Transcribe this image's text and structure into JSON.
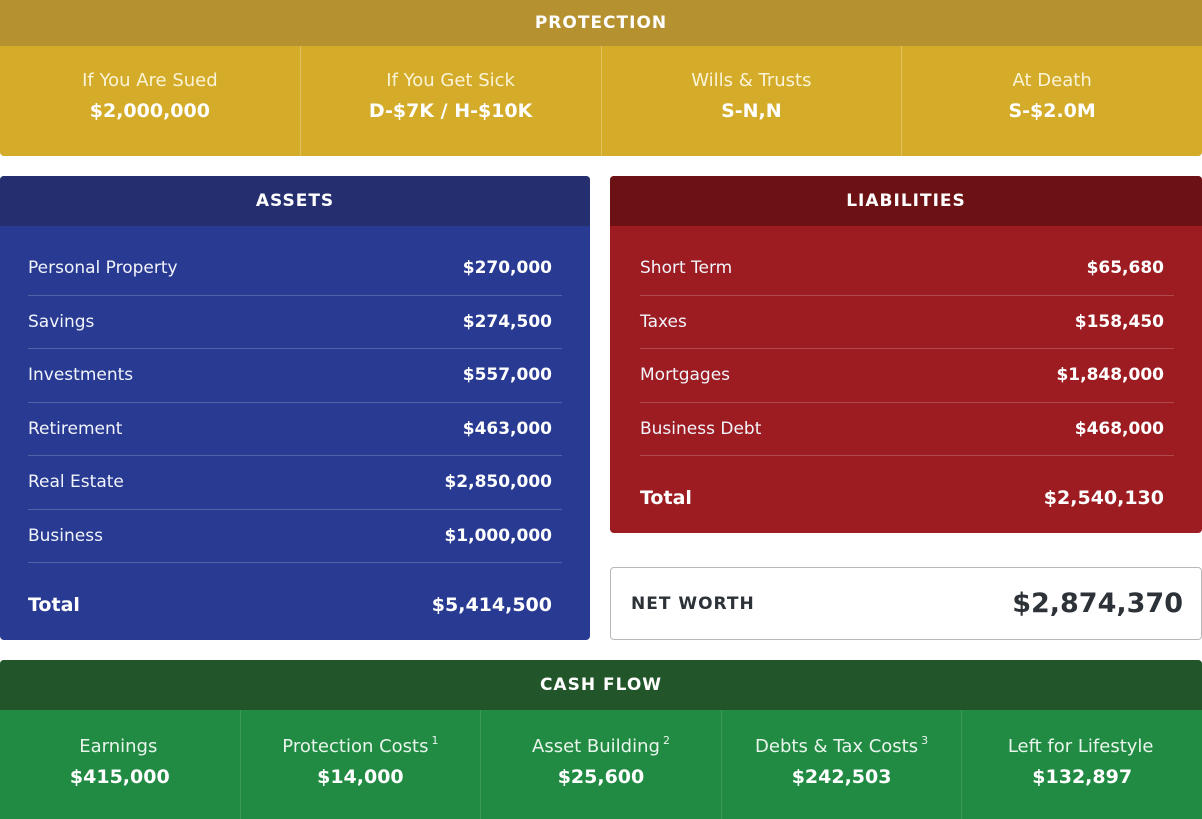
{
  "protection": {
    "title": "PROTECTION",
    "color_header": "#b5912f",
    "color_body": "#d4ac2a",
    "items": [
      {
        "label": "If You Are Sued",
        "value": "$2,000,000"
      },
      {
        "label": "If You Get Sick",
        "value": "D-$7K / H-$10K"
      },
      {
        "label": "Wills & Trusts",
        "value": "S-N,N"
      },
      {
        "label": "At Death",
        "value": "S-$2.0M"
      }
    ]
  },
  "assets": {
    "title": "ASSETS",
    "color_header": "#252f70",
    "color_body": "#283a92",
    "rows": [
      {
        "label": "Personal Property",
        "value": "$270,000"
      },
      {
        "label": "Savings",
        "value": "$274,500"
      },
      {
        "label": "Investments",
        "value": "$557,000"
      },
      {
        "label": "Retirement",
        "value": "$463,000"
      },
      {
        "label": "Real Estate",
        "value": "$2,850,000"
      },
      {
        "label": "Business",
        "value": "$1,000,000"
      }
    ],
    "total": {
      "label": "Total",
      "value": "$5,414,500"
    }
  },
  "liabilities": {
    "title": "LIABILITIES",
    "color_header": "#6d1214",
    "color_body": "#9c1c22",
    "rows": [
      {
        "label": "Short Term",
        "value": "$65,680"
      },
      {
        "label": "Taxes",
        "value": "$158,450"
      },
      {
        "label": "Mortgages",
        "value": "$1,848,000"
      },
      {
        "label": "Business Debt",
        "value": "$468,000"
      }
    ],
    "total": {
      "label": "Total",
      "value": "$2,540,130"
    }
  },
  "net_worth": {
    "label": "NET WORTH",
    "value": "$2,874,370"
  },
  "cash_flow": {
    "title": "CASH FLOW",
    "color_header": "#225529",
    "color_body": "#218b43",
    "items": [
      {
        "label": "Earnings",
        "footnote": "",
        "value": "$415,000"
      },
      {
        "label": "Protection Costs",
        "footnote": "1",
        "value": "$14,000"
      },
      {
        "label": "Asset Building",
        "footnote": "2",
        "value": "$25,600"
      },
      {
        "label": "Debts & Tax Costs",
        "footnote": "3",
        "value": "$242,503"
      },
      {
        "label": "Left for Lifestyle",
        "footnote": "",
        "value": "$132,897"
      }
    ]
  }
}
